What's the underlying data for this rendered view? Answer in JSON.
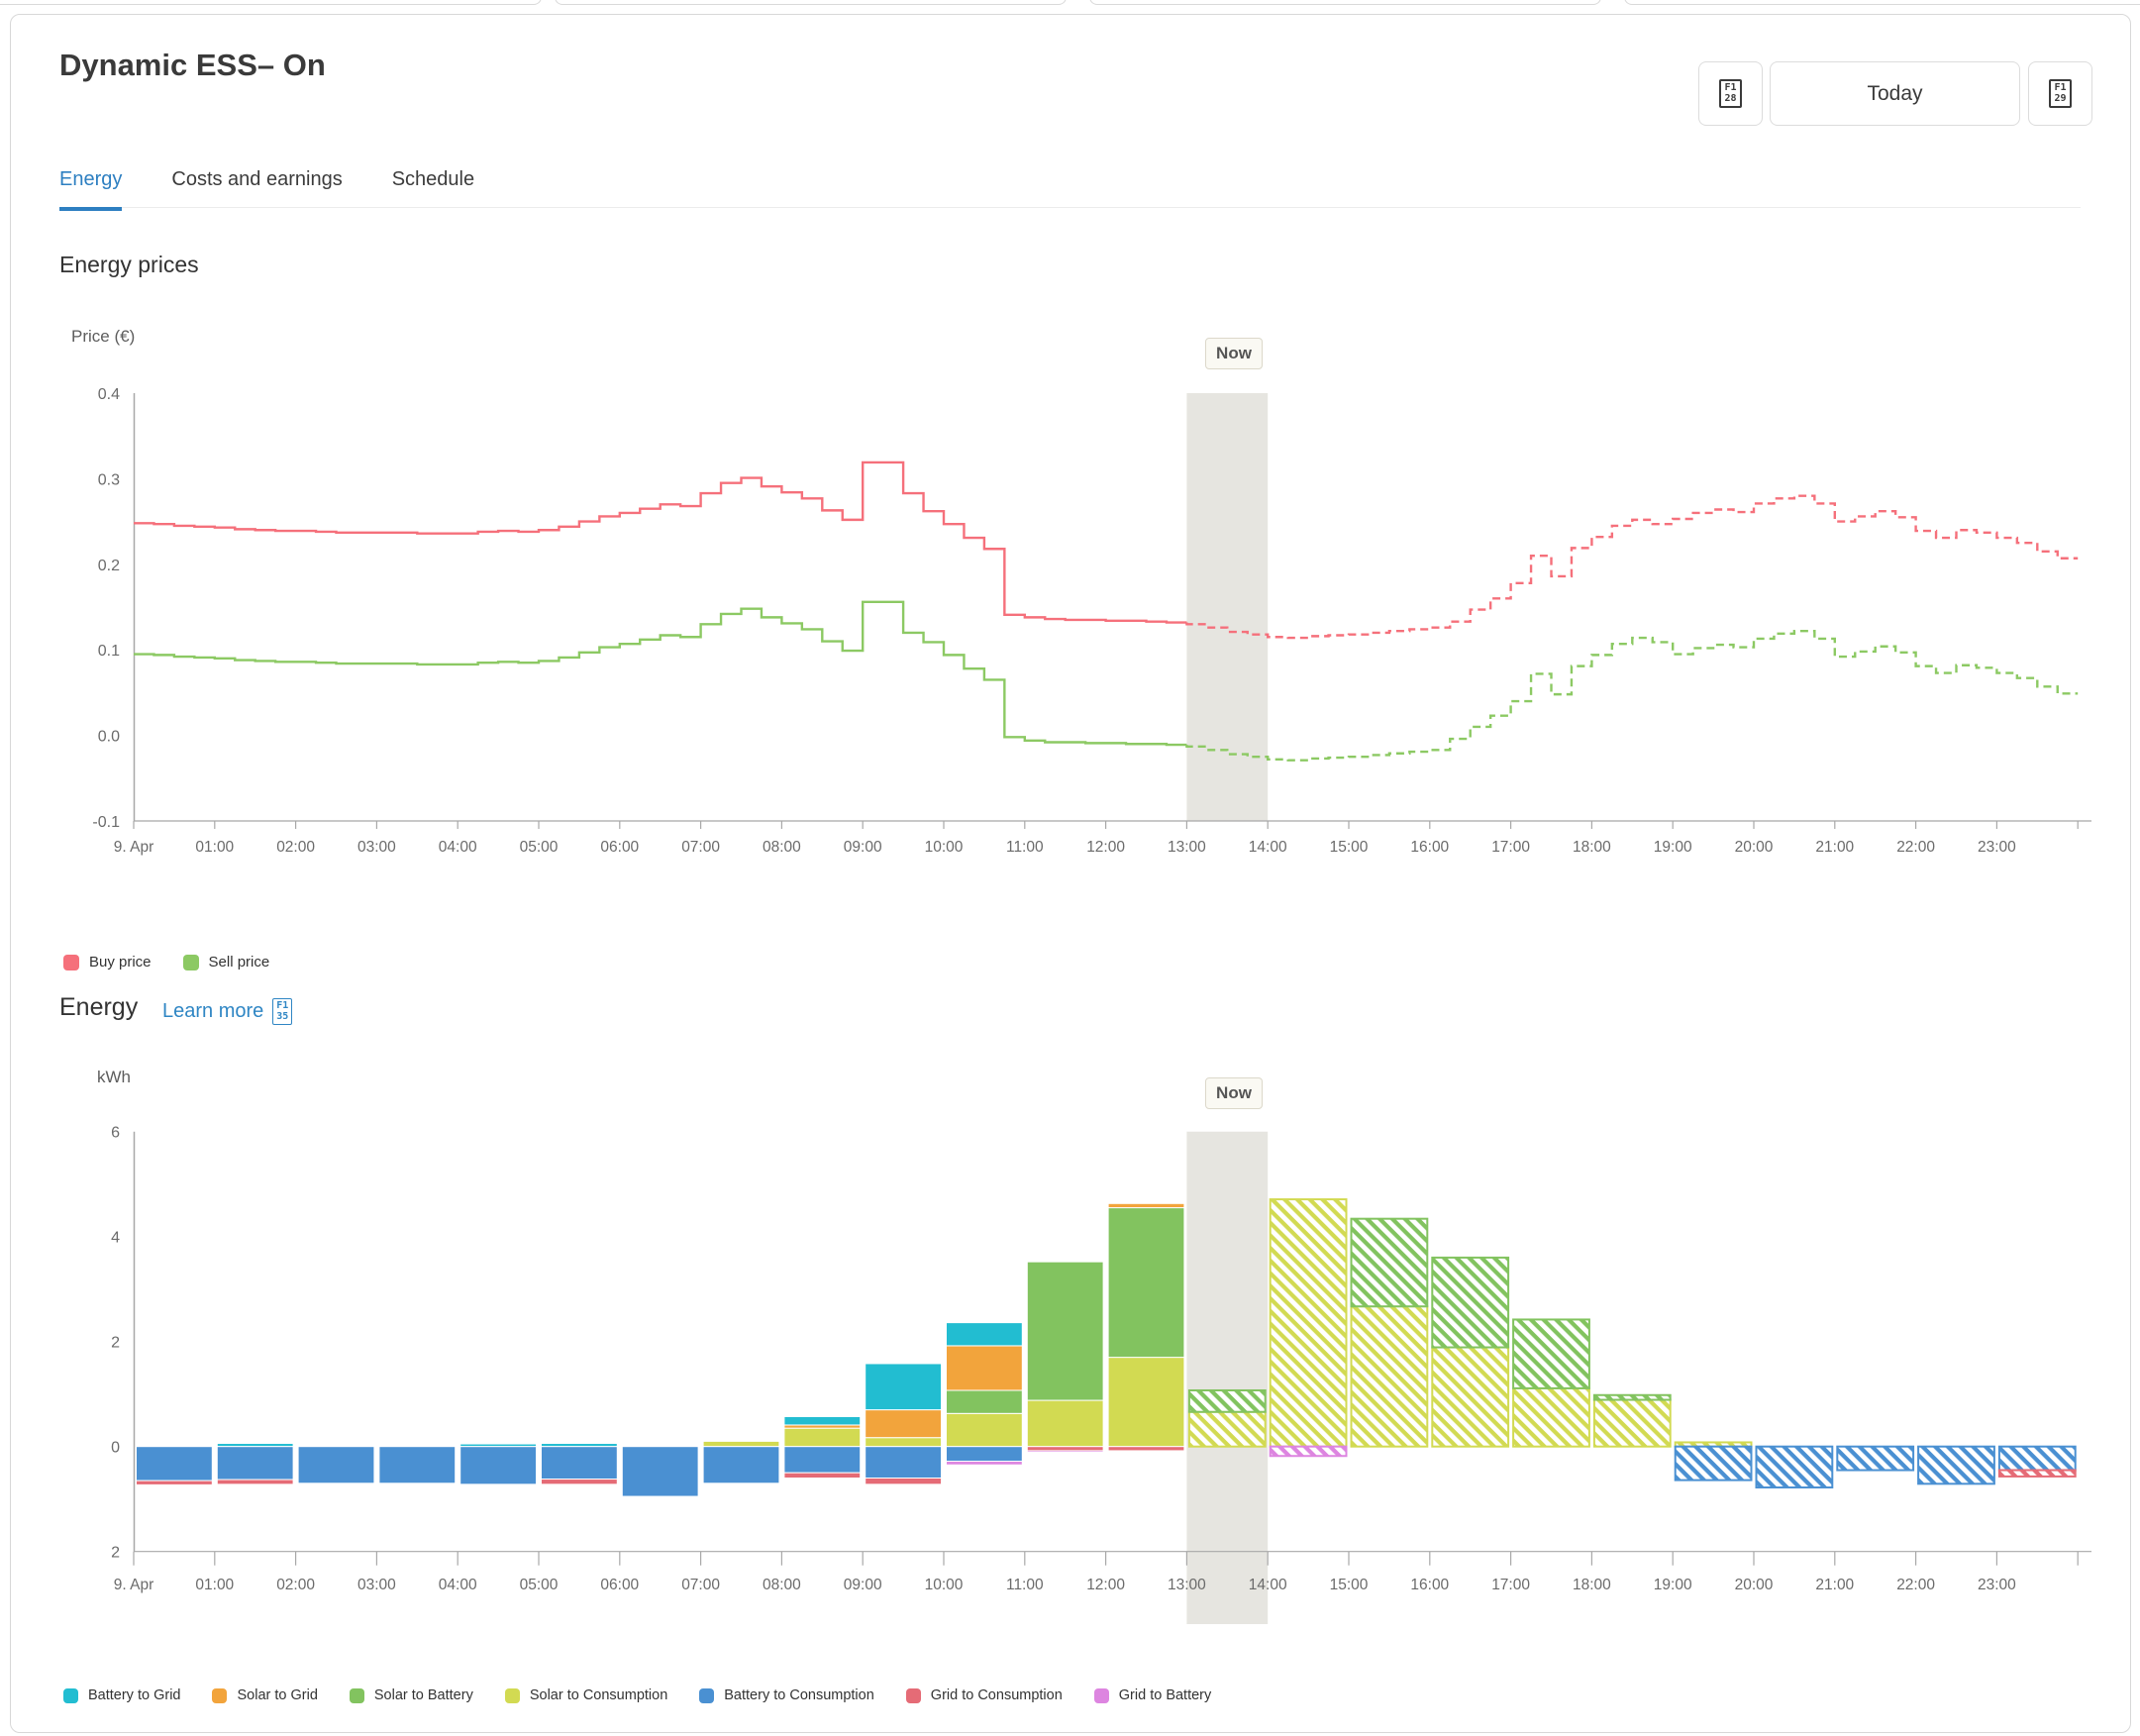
{
  "header": {
    "title": "Dynamic ESS– On",
    "nav_prev_glyph": [
      "F1",
      "28"
    ],
    "today_label": "Today",
    "nav_next_glyph": [
      "F1",
      "29"
    ]
  },
  "tabs": [
    {
      "label": "Energy",
      "active": true
    },
    {
      "label": "Costs and earnings",
      "active": false
    },
    {
      "label": "Schedule",
      "active": false
    }
  ],
  "price_section": {
    "title": "Energy prices",
    "axis_title": "Price (€)",
    "now_label": "Now",
    "legend": [
      {
        "label": "Buy price",
        "color": "#f5707b"
      },
      {
        "label": "Sell price",
        "color": "#8cc963"
      }
    ]
  },
  "energy_section": {
    "title": "Energy",
    "learn_more_label": "Learn more",
    "learn_more_glyph": [
      "F1",
      "35"
    ],
    "axis_title": "kWh",
    "now_label": "Now",
    "legend": [
      {
        "label": "Battery to Grid",
        "color": "#22bdd1"
      },
      {
        "label": "Solar to Grid",
        "color": "#f2a43c"
      },
      {
        "label": "Solar to Battery",
        "color": "#82c35f"
      },
      {
        "label": "Solar to Consumption",
        "color": "#d2da52"
      },
      {
        "label": "Battery to Consumption",
        "color": "#4a90d2"
      },
      {
        "label": "Grid to Consumption",
        "color": "#e56b76"
      },
      {
        "label": "Grid to Battery",
        "color": "#dd85e0"
      }
    ]
  },
  "chart_data": [
    {
      "type": "line",
      "title": "Energy prices",
      "step": true,
      "ylabel": "Price (€)",
      "ylim": [
        -0.1,
        0.4
      ],
      "y_ticks": [
        "0.4",
        "0.3",
        "0.2",
        "0.1",
        "0.0",
        "-0.1"
      ],
      "y_tick_values": [
        0.4,
        0.3,
        0.2,
        0.1,
        0,
        -0.1
      ],
      "x_labels": [
        "9. Apr",
        "01:00",
        "02:00",
        "03:00",
        "04:00",
        "05:00",
        "06:00",
        "07:00",
        "08:00",
        "09:00",
        "10:00",
        "11:00",
        "12:00",
        "13:00",
        "14:00",
        "15:00",
        "16:00",
        "17:00",
        "18:00",
        "19:00",
        "20:00",
        "21:00",
        "22:00",
        "23:00"
      ],
      "points_per_hour": 4,
      "x_start_hour": 0,
      "x_end_hour": 24,
      "now_band_hours": [
        13,
        14
      ],
      "dashed_from_hour": 13,
      "legend_position": "bottom",
      "series": [
        {
          "name": "Buy price",
          "color": "#f5707b",
          "values": [
            0.248,
            0.247,
            0.245,
            0.244,
            0.243,
            0.241,
            0.24,
            0.239,
            0.239,
            0.238,
            0.237,
            0.237,
            0.237,
            0.237,
            0.236,
            0.236,
            0.236,
            0.238,
            0.239,
            0.238,
            0.24,
            0.244,
            0.25,
            0.256,
            0.26,
            0.265,
            0.27,
            0.268,
            0.283,
            0.295,
            0.301,
            0.291,
            0.284,
            0.277,
            0.263,
            0.252,
            0.319,
            0.319,
            0.283,
            0.262,
            0.247,
            0.231,
            0.218,
            0.141,
            0.138,
            0.136,
            0.135,
            0.135,
            0.134,
            0.134,
            0.133,
            0.132,
            0.13,
            0.126,
            0.121,
            0.118,
            0.115,
            0.114,
            0.116,
            0.117,
            0.118,
            0.12,
            0.122,
            0.124,
            0.126,
            0.133,
            0.147,
            0.16,
            0.178,
            0.21,
            0.186,
            0.219,
            0.232,
            0.245,
            0.252,
            0.247,
            0.253,
            0.26,
            0.264,
            0.261,
            0.271,
            0.277,
            0.28,
            0.271,
            0.25,
            0.256,
            0.262,
            0.255,
            0.239,
            0.231,
            0.24,
            0.237,
            0.231,
            0.225,
            0.215,
            0.207
          ]
        },
        {
          "name": "Sell price",
          "color": "#8cc963",
          "values": [
            0.095,
            0.094,
            0.092,
            0.091,
            0.09,
            0.088,
            0.087,
            0.086,
            0.086,
            0.085,
            0.084,
            0.084,
            0.084,
            0.084,
            0.083,
            0.083,
            0.083,
            0.085,
            0.086,
            0.085,
            0.087,
            0.091,
            0.097,
            0.103,
            0.107,
            0.112,
            0.117,
            0.115,
            0.13,
            0.142,
            0.148,
            0.138,
            0.131,
            0.124,
            0.11,
            0.099,
            0.156,
            0.156,
            0.12,
            0.109,
            0.094,
            0.078,
            0.065,
            -0.002,
            -0.006,
            -0.008,
            -0.008,
            -0.009,
            -0.009,
            -0.01,
            -0.01,
            -0.011,
            -0.013,
            -0.017,
            -0.022,
            -0.025,
            -0.028,
            -0.029,
            -0.027,
            -0.026,
            -0.025,
            -0.023,
            -0.021,
            -0.019,
            -0.017,
            -0.004,
            0.01,
            0.023,
            0.04,
            0.072,
            0.048,
            0.081,
            0.094,
            0.107,
            0.114,
            0.109,
            0.095,
            0.102,
            0.106,
            0.103,
            0.113,
            0.119,
            0.122,
            0.113,
            0.092,
            0.098,
            0.104,
            0.097,
            0.081,
            0.073,
            0.082,
            0.079,
            0.073,
            0.067,
            0.057,
            0.049
          ]
        }
      ]
    },
    {
      "type": "bar",
      "stacked": true,
      "title": "Energy",
      "ylabel": "kWh",
      "ylim": [
        -2,
        6
      ],
      "y_ticks": [
        "6",
        "4",
        "2",
        "0",
        "2"
      ],
      "y_tick_values": [
        6,
        4,
        2,
        0,
        -2
      ],
      "x_labels": [
        "9. Apr",
        "01:00",
        "02:00",
        "03:00",
        "04:00",
        "05:00",
        "06:00",
        "07:00",
        "08:00",
        "09:00",
        "10:00",
        "11:00",
        "12:00",
        "13:00",
        "14:00",
        "15:00",
        "16:00",
        "17:00",
        "18:00",
        "19:00",
        "20:00",
        "21:00",
        "22:00",
        "23:00"
      ],
      "categories_hours": [
        0,
        1,
        2,
        3,
        4,
        5,
        6,
        7,
        8,
        9,
        10,
        11,
        12,
        13,
        14,
        15,
        16,
        17,
        18,
        19,
        20,
        21,
        22,
        23
      ],
      "now_band_hours": [
        13,
        14
      ],
      "hatched_from_hour": 13,
      "positive_stack": [
        "Solar to Consumption",
        "Solar to Battery",
        "Solar to Grid",
        "Battery to Grid"
      ],
      "negative_stack": [
        "Battery to Consumption",
        "Grid to Consumption",
        "Grid to Battery"
      ],
      "legend_position": "bottom",
      "series": [
        {
          "name": "Battery to Grid",
          "color": "#22bdd1",
          "direction": "positive",
          "values": [
            0,
            0.06,
            0,
            0,
            0.05,
            0.06,
            0,
            0,
            0.16,
            0.88,
            0.44,
            0,
            0,
            0,
            0,
            0,
            0,
            0,
            0,
            0,
            0,
            0,
            0,
            0
          ]
        },
        {
          "name": "Solar to Grid",
          "color": "#f2a43c",
          "direction": "positive",
          "values": [
            0,
            0,
            0,
            0,
            0,
            0,
            0,
            0,
            0.06,
            0.53,
            0.85,
            0,
            0.08,
            0,
            0,
            0,
            0,
            0,
            0,
            0,
            0,
            0,
            0,
            0
          ]
        },
        {
          "name": "Solar to Battery",
          "color": "#82c35f",
          "direction": "positive",
          "values": [
            0,
            0,
            0,
            0,
            0,
            0,
            0,
            0,
            0,
            0,
            0.44,
            2.64,
            2.85,
            0.41,
            0,
            1.67,
            1.71,
            1.31,
            0.09,
            0,
            0,
            0,
            0,
            0
          ]
        },
        {
          "name": "Solar to Consumption",
          "color": "#d2da52",
          "direction": "positive",
          "values": [
            0,
            0,
            0,
            0,
            0,
            0,
            0,
            0.1,
            0.35,
            0.17,
            0.63,
            0.88,
            1.7,
            0.66,
            4.71,
            2.67,
            1.89,
            1.11,
            0.89,
            0.08,
            0,
            0,
            0,
            0
          ]
        },
        {
          "name": "Battery to Consumption",
          "color": "#4a90d2",
          "direction": "negative",
          "values": [
            0.65,
            0.63,
            0.7,
            0.7,
            0.72,
            0.62,
            0.95,
            0.7,
            0.5,
            0.6,
            0.28,
            0,
            0,
            0,
            0,
            0,
            0,
            0,
            0,
            0.64,
            0.78,
            0.45,
            0.71,
            0.45
          ]
        },
        {
          "name": "Grid to Consumption",
          "color": "#e56b76",
          "direction": "negative",
          "values": [
            0.08,
            0.09,
            0,
            0,
            0,
            0.1,
            0,
            0,
            0.1,
            0.12,
            0,
            0.08,
            0.08,
            0,
            0,
            0,
            0,
            0,
            0,
            0,
            0,
            0,
            0,
            0.12
          ]
        },
        {
          "name": "Grid to Battery",
          "color": "#dd85e0",
          "direction": "negative",
          "values": [
            0,
            0,
            0,
            0,
            0,
            0,
            0,
            0,
            0,
            0,
            0.07,
            0.03,
            0,
            0,
            0.18,
            0,
            0,
            0,
            0,
            0,
            0,
            0,
            0,
            0
          ]
        }
      ]
    }
  ]
}
